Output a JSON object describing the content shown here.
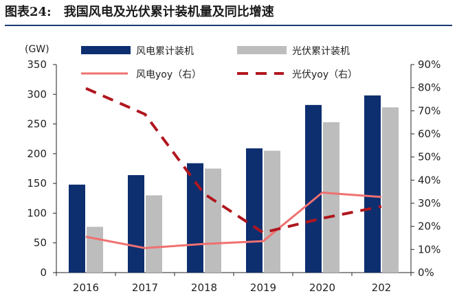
{
  "figure": {
    "number": "图表24:",
    "title": "我国风电及光伏累计装机量及同比增速"
  },
  "chart_data": {
    "type": "bar",
    "title": "我国风电及光伏累计装机量及同比增速",
    "unit_label": "(GW)",
    "categories": [
      "2016",
      "2017",
      "2018",
      "2019",
      "2020",
      "202"
    ],
    "series": [
      {
        "name": "风电累计装机",
        "kind": "bar",
        "axis": "left",
        "color": "#0d2f70",
        "values": [
          148,
          164,
          184,
          209,
          282,
          298
        ]
      },
      {
        "name": "光伏累计装机",
        "kind": "bar",
        "axis": "left",
        "color": "#bdbdbd",
        "values": [
          77,
          130,
          175,
          205,
          253,
          278
        ]
      },
      {
        "name": "风电yoy（右）",
        "kind": "line",
        "axis": "right",
        "color": "#f07070",
        "dash": "solid",
        "values": [
          15.5,
          10.6,
          12.4,
          13.6,
          34.6,
          32.7
        ]
      },
      {
        "name": "光伏yoy（右）",
        "kind": "line",
        "axis": "right",
        "color": "#b0161e",
        "dash": "dashed",
        "values": [
          79.7,
          68.5,
          34.1,
          17.3,
          23.5,
          28.6
        ]
      }
    ],
    "y_left": {
      "ticks": [
        0,
        50,
        100,
        150,
        200,
        250,
        300,
        350
      ],
      "range": [
        0,
        350
      ]
    },
    "y_right": {
      "ticks": [
        "0%",
        "10%",
        "20%",
        "30%",
        "40%",
        "50%",
        "60%",
        "70%",
        "80%",
        "90%"
      ],
      "range": [
        0,
        90
      ]
    },
    "grid": false,
    "legend_position": "top"
  }
}
